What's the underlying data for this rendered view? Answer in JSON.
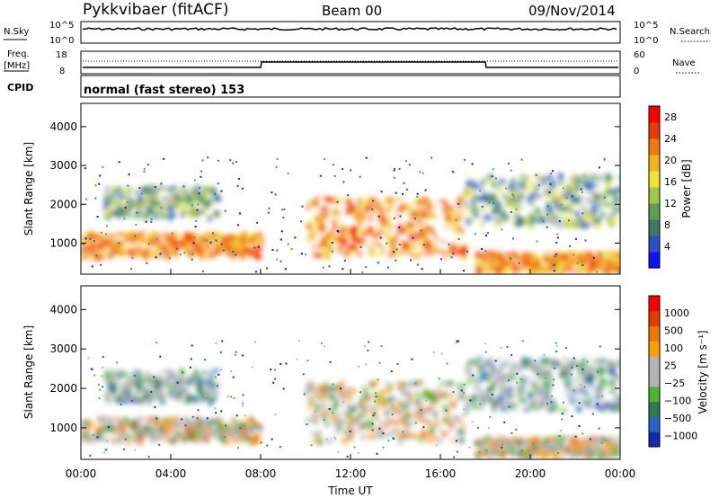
{
  "header": {
    "title": "Pykkvibaer (fitACF)",
    "beam": "Beam 00",
    "date": "09/Nov/2014"
  },
  "panels": {
    "nsky": {
      "left_label": "N.Sky",
      "left_top_tick": "10^5",
      "left_bottom_tick": "10^0",
      "right_label": "N.Search",
      "right_top_tick": "10^5",
      "right_bottom_tick": "10^0"
    },
    "freq": {
      "left_label_1": "Freq.",
      "left_label_2": "[MHz]",
      "left_top_tick": "18",
      "left_bottom_tick": "8",
      "right_label": "Nave",
      "right_top_tick": "60",
      "right_bottom_tick": "0"
    },
    "cpid": {
      "label": "CPID",
      "text": "normal (fast stereo) 153"
    }
  },
  "colors": {
    "power_scale": [
      "#1010ff",
      "#2850c8",
      "#3c7a64",
      "#5aa050",
      "#a0c846",
      "#f0e632",
      "#f0b41e",
      "#f07814",
      "#e63c0a",
      "#ff0000"
    ],
    "velocity_scale": [
      "#1428b4",
      "#2864c8",
      "#327850",
      "#50b432",
      "#b4b4b4",
      "#b4b4b4",
      "#ffa000",
      "#f07800",
      "#e63c00",
      "#ff0000"
    ]
  },
  "chart_data": [
    {
      "type": "heatmap",
      "panel": "power",
      "ylabel": "Slant Range [km]",
      "ylim": [
        200,
        4600
      ],
      "yticks": [
        "1000",
        "2000",
        "3000",
        "4000"
      ],
      "xticks": [
        "00:00",
        "04:00",
        "08:00",
        "12:00",
        "16:00",
        "20:00",
        "00:00"
      ],
      "colorbar": {
        "label": "Power [dB]",
        "ticks": [
          "4",
          "8",
          "12",
          "16",
          "20",
          "24",
          "28"
        ],
        "range": [
          0,
          30
        ]
      },
      "echo_bands": [
        {
          "t_start": 0.0,
          "t_end": 8.0,
          "range_km": [
            700,
            1300
          ],
          "level": "high"
        },
        {
          "t_start": 1.0,
          "t_end": 6.0,
          "range_km": [
            1700,
            2500
          ],
          "level": "mid"
        },
        {
          "t_start": 10.0,
          "t_end": 17.0,
          "range_km": [
            700,
            2200
          ],
          "level": "high"
        },
        {
          "t_start": 17.5,
          "t_end": 24.0,
          "range_km": [
            300,
            800
          ],
          "level": "high"
        },
        {
          "t_start": 17.0,
          "t_end": 24.0,
          "range_km": [
            1500,
            2800
          ],
          "level": "mid"
        }
      ]
    },
    {
      "type": "heatmap",
      "panel": "velocity",
      "ylabel": "Slant Range [km]",
      "xlabel": "Time UT",
      "ylim": [
        200,
        4600
      ],
      "yticks": [
        "1000",
        "2000",
        "3000",
        "4000"
      ],
      "xticks": [
        "00:00",
        "04:00",
        "08:00",
        "12:00",
        "16:00",
        "20:00",
        "00:00"
      ],
      "colorbar": {
        "label": "Velocity [m s⁻¹]",
        "ticks": [
          "1000",
          "500",
          "100",
          "25",
          "−25",
          "−100",
          "−500",
          "−1000"
        ]
      }
    }
  ]
}
